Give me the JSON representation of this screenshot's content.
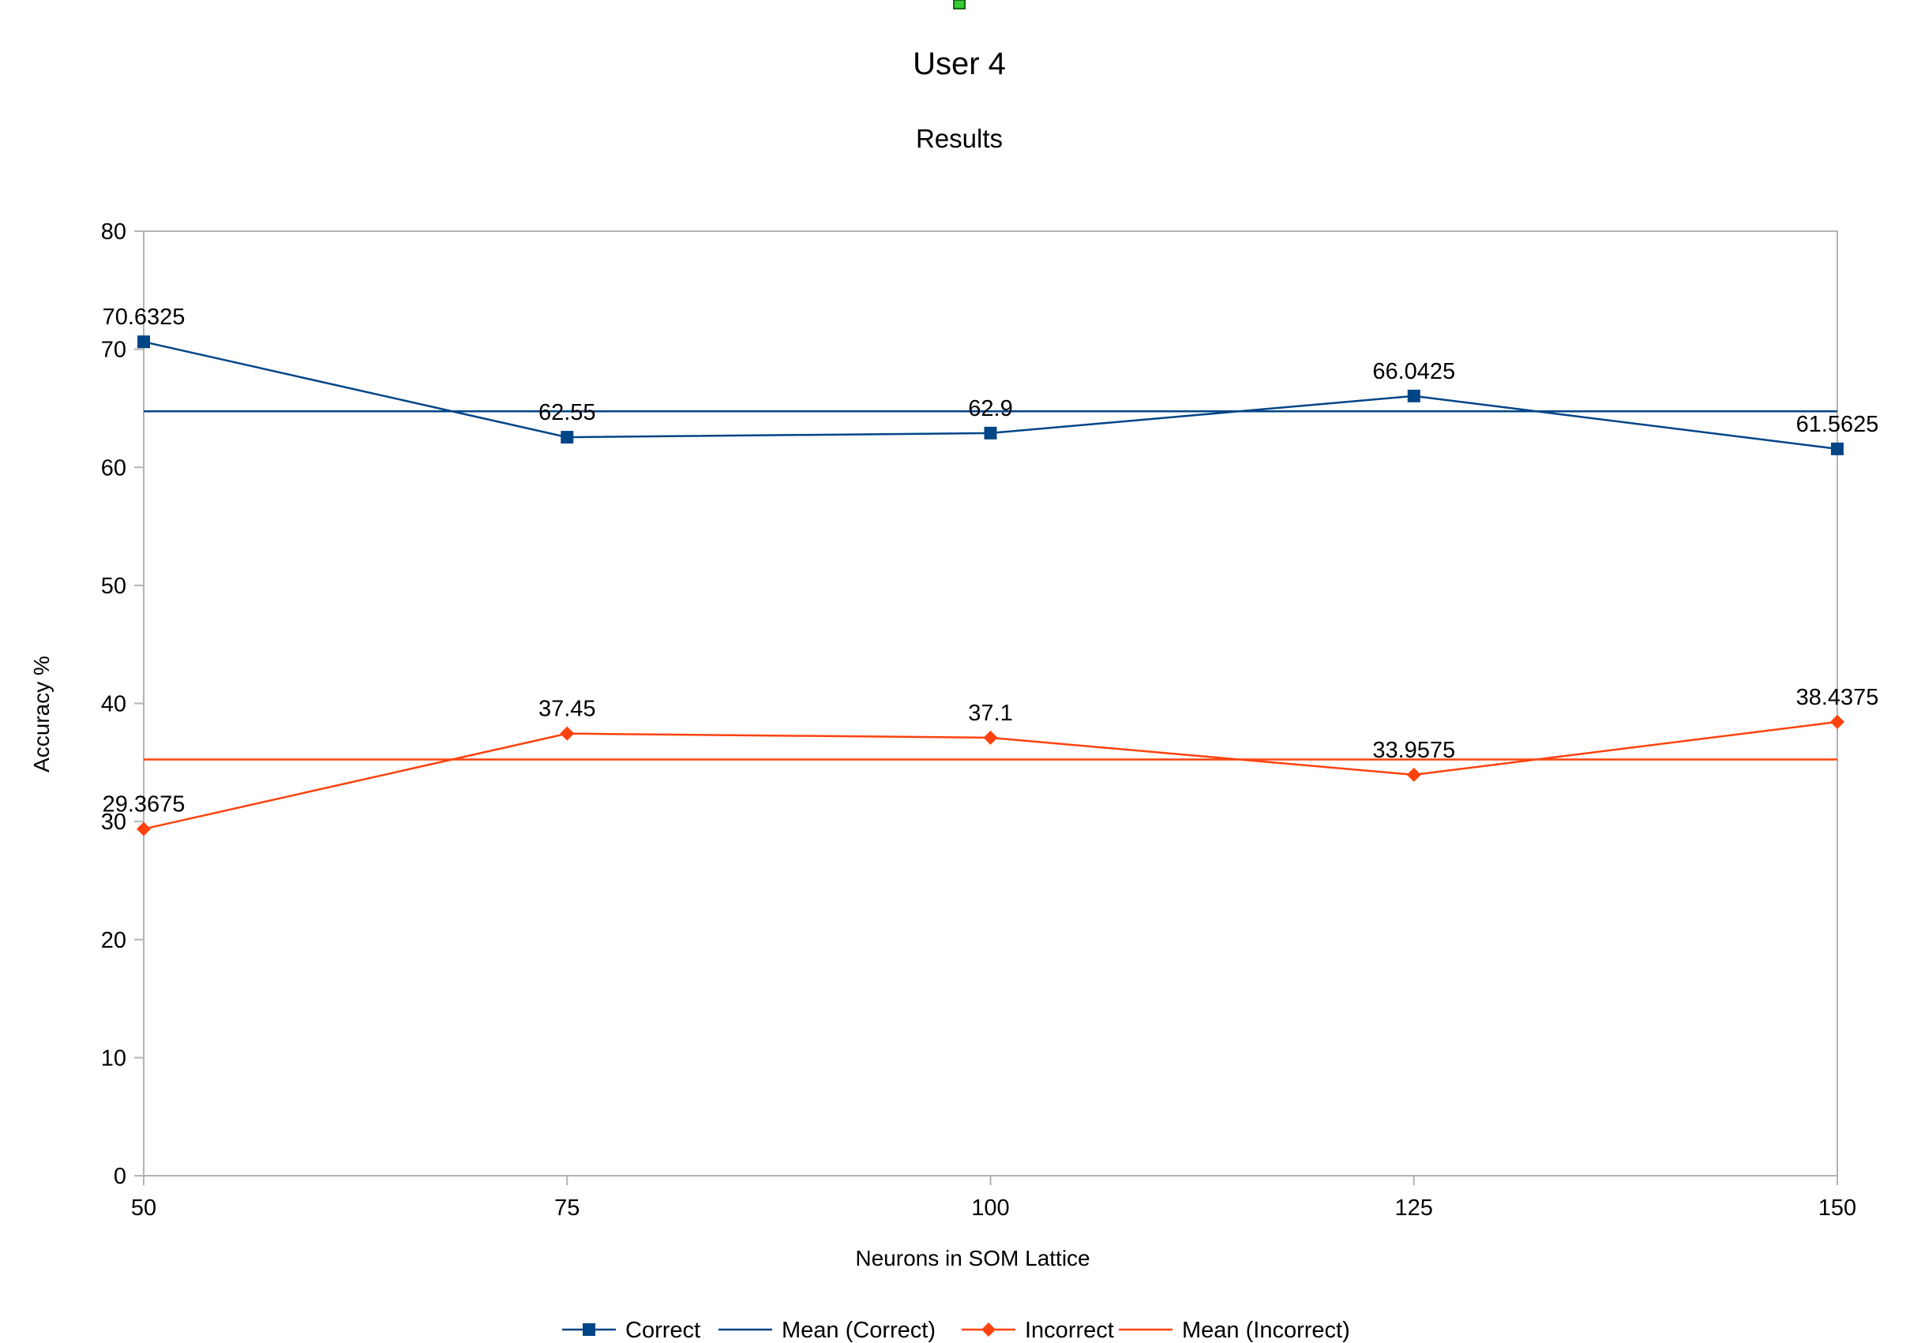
{
  "chart_data": {
    "type": "line",
    "title": "User 4",
    "subtitle": "Results",
    "xlabel": "Neurons in SOM Lattice",
    "ylabel": "Accuracy %",
    "x": [
      50,
      75,
      100,
      125,
      150
    ],
    "xlim": [
      50,
      150
    ],
    "ylim": [
      0,
      80
    ],
    "yticks": [
      0,
      10,
      20,
      30,
      40,
      50,
      60,
      70,
      80
    ],
    "grid": false,
    "legend_position": "bottom",
    "series": [
      {
        "name": "Correct",
        "values": [
          70.6325,
          62.55,
          62.9,
          66.0425,
          61.5625
        ],
        "labels": [
          "70.6325",
          "62.55",
          "62.9",
          "66.0425",
          "61.5625"
        ],
        "color": "#004586",
        "marker": "square"
      },
      {
        "name": "Incorrect",
        "values": [
          29.3675,
          37.45,
          37.1,
          33.9575,
          38.4375
        ],
        "labels": [
          "29.3675",
          "37.45",
          "37.1",
          "33.9575",
          "38.4375"
        ],
        "color": "#ff420e",
        "marker": "diamond"
      }
    ],
    "mean_lines": [
      {
        "name": "Mean (Correct)",
        "value": 64.7475,
        "color": "#004586"
      },
      {
        "name": "Mean (Incorrect)",
        "value": 35.2525,
        "color": "#ff420e"
      }
    ]
  }
}
